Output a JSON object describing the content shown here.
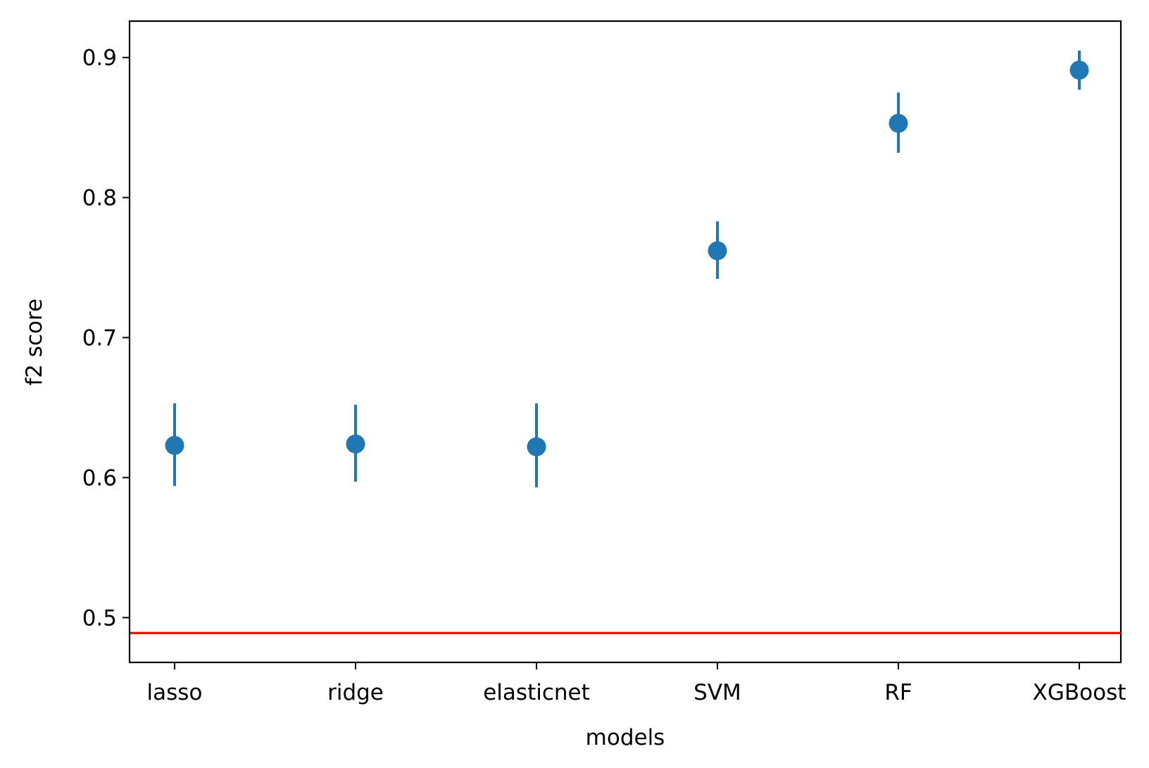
{
  "chart_data": {
    "type": "scatter",
    "subtype": "errorbar",
    "categories": [
      "lasso",
      "ridge",
      "elasticnet",
      "SVM",
      "RF",
      "XGBoost"
    ],
    "series": [
      {
        "values": [
          0.623,
          0.624,
          0.622,
          0.762,
          0.853,
          0.891
        ],
        "error_low": [
          0.594,
          0.597,
          0.593,
          0.742,
          0.832,
          0.877
        ],
        "error_high": [
          0.653,
          0.652,
          0.653,
          0.783,
          0.875,
          0.905
        ],
        "color": "#1f77b4"
      }
    ],
    "reference_lines": [
      {
        "y": 0.489,
        "color": "#ff0000"
      }
    ],
    "xlabel": "models",
    "ylabel": "f2 score",
    "ylim": [
      0.468,
      0.926
    ],
    "yticks": [
      0.5,
      0.6,
      0.7,
      0.8,
      0.9
    ],
    "ytick_labels": [
      "0.5",
      "0.6",
      "0.7",
      "0.8",
      "0.9"
    ],
    "grid": false,
    "legend": "none"
  }
}
